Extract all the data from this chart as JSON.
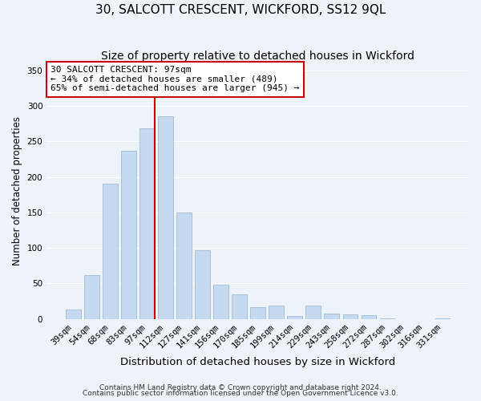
{
  "title": "30, SALCOTT CRESCENT, WICKFORD, SS12 9QL",
  "subtitle": "Size of property relative to detached houses in Wickford",
  "xlabel": "Distribution of detached houses by size in Wickford",
  "ylabel": "Number of detached properties",
  "bar_labels": [
    "39sqm",
    "54sqm",
    "68sqm",
    "83sqm",
    "97sqm",
    "112sqm",
    "127sqm",
    "141sqm",
    "156sqm",
    "170sqm",
    "185sqm",
    "199sqm",
    "214sqm",
    "229sqm",
    "243sqm",
    "258sqm",
    "272sqm",
    "287sqm",
    "302sqm",
    "316sqm",
    "331sqm"
  ],
  "bar_values": [
    13,
    62,
    191,
    237,
    268,
    285,
    150,
    97,
    48,
    35,
    17,
    19,
    4,
    19,
    8,
    6,
    5,
    1,
    0,
    0,
    1
  ],
  "bar_color": "#c5d9f0",
  "bar_edge_color": "#9fbcd4",
  "vline_x_index": 4,
  "vline_color": "#cc0000",
  "annotation_title": "30 SALCOTT CRESCENT: 97sqm",
  "annotation_line1": "← 34% of detached houses are smaller (489)",
  "annotation_line2": "65% of semi-detached houses are larger (945) →",
  "annotation_box_color": "#ffffff",
  "annotation_box_edge_color": "#cc0000",
  "ylim": [
    0,
    360
  ],
  "yticks": [
    0,
    50,
    100,
    150,
    200,
    250,
    300,
    350
  ],
  "footer1": "Contains HM Land Registry data © Crown copyright and database right 2024.",
  "footer2": "Contains public sector information licensed under the Open Government Licence v3.0.",
  "background_color": "#eef2f9",
  "grid_color": "#ffffff",
  "title_fontsize": 11,
  "subtitle_fontsize": 10,
  "xlabel_fontsize": 9.5,
  "ylabel_fontsize": 8.5,
  "tick_fontsize": 7.5,
  "footer_fontsize": 6.5,
  "annotation_fontsize": 8
}
